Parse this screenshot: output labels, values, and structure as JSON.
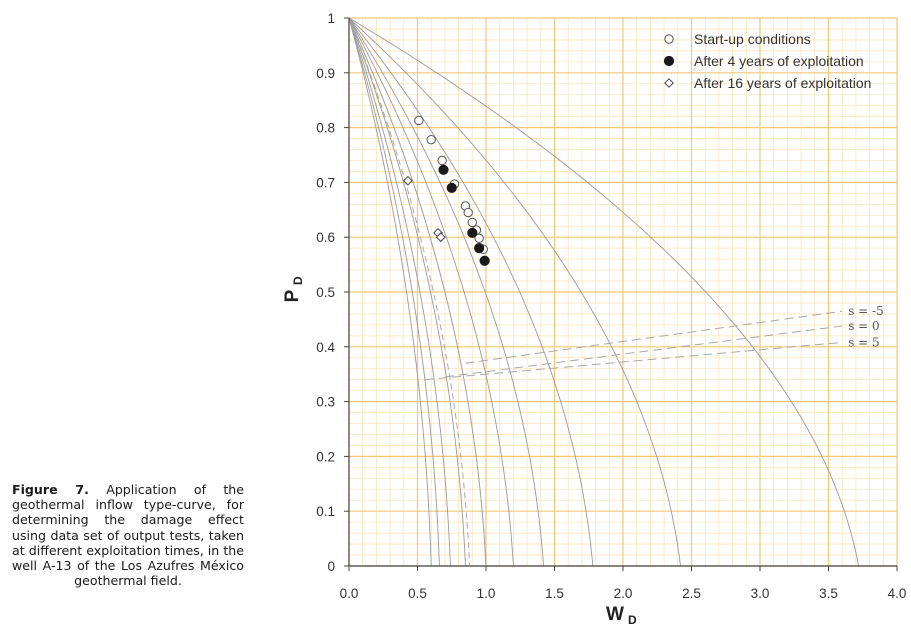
{
  "caption": {
    "label": "Figure 7.",
    "text": "Application of the geothermal inflow type-curve, for determining the damage effect using data set of output tests, taken at different exploitation times, in the well A-13 of the Los Azufres México geothermal field."
  },
  "chart_data": {
    "type": "scatter",
    "xlabel": "W",
    "xlabel_sub": "D",
    "ylabel": "P",
    "ylabel_sub": "D",
    "xlim": [
      0,
      4.0
    ],
    "ylim": [
      0,
      1
    ],
    "x_ticks": [
      "0.0",
      "0.5",
      "1.0",
      "1.5",
      "2.0",
      "2.5",
      "3.0",
      "3.5",
      "4.0"
    ],
    "y_ticks": [
      "0",
      "0.1",
      "0.2",
      "0.3",
      "0.4",
      "0.5",
      "0.6",
      "0.7",
      "0.8",
      "0.9",
      "1"
    ],
    "grid": true,
    "legend_position": "top-right",
    "series": [
      {
        "name": "Start-up conditions",
        "marker": "open-circle",
        "points": [
          [
            0.51,
            0.813
          ],
          [
            0.6,
            0.778
          ],
          [
            0.68,
            0.74
          ],
          [
            0.77,
            0.697
          ],
          [
            0.85,
            0.657
          ],
          [
            0.87,
            0.645
          ],
          [
            0.9,
            0.627
          ],
          [
            0.93,
            0.613
          ],
          [
            0.95,
            0.598
          ],
          [
            0.98,
            0.578
          ]
        ]
      },
      {
        "name": "After 4 years of exploitation",
        "marker": "filled-circle",
        "points": [
          [
            0.69,
            0.723
          ],
          [
            0.75,
            0.69
          ],
          [
            0.9,
            0.608
          ],
          [
            0.95,
            0.58
          ],
          [
            0.99,
            0.557
          ]
        ]
      },
      {
        "name": "After 16 years of exploitation",
        "marker": "open-diamond",
        "points": [
          [
            0.43,
            0.703
          ],
          [
            0.65,
            0.608
          ],
          [
            0.67,
            0.6
          ]
        ]
      }
    ],
    "curve_labels": [
      "s = -5",
      "s = 0",
      "s = 5"
    ],
    "type_curve_intercepts": [
      0.6,
      0.66,
      0.74,
      0.85,
      1.0,
      1.2,
      1.42,
      1.78,
      2.42,
      3.72
    ],
    "dashed_curve_intercepts": [
      0.88,
      1.0
    ],
    "s_lines": [
      {
        "label": "s = -5",
        "from": [
          0.85,
          0.37
        ],
        "to": [
          3.6,
          0.465
        ]
      },
      {
        "label": "s = 0",
        "from": [
          0.7,
          0.345
        ],
        "to": [
          3.6,
          0.438
        ]
      },
      {
        "label": "s = 5",
        "from": [
          0.55,
          0.34
        ],
        "to": [
          3.6,
          0.408
        ]
      }
    ],
    "colors": {
      "major_grid": "#f2c878",
      "minor_grid": "#fbe6b8",
      "curve": "#9a9a9a",
      "dashed": "#a8a8a8",
      "axis": "#444444",
      "text": "#333333"
    }
  }
}
